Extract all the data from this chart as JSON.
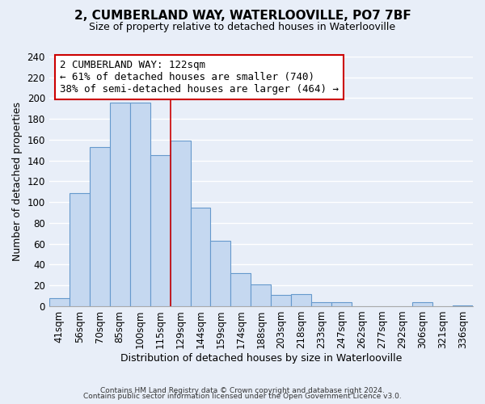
{
  "title": "2, CUMBERLAND WAY, WATERLOOVILLE, PO7 7BF",
  "subtitle": "Size of property relative to detached houses in Waterlooville",
  "xlabel": "Distribution of detached houses by size in Waterlooville",
  "ylabel": "Number of detached properties",
  "bar_labels": [
    "41sqm",
    "56sqm",
    "70sqm",
    "85sqm",
    "100sqm",
    "115sqm",
    "129sqm",
    "144sqm",
    "159sqm",
    "174sqm",
    "188sqm",
    "203sqm",
    "218sqm",
    "233sqm",
    "247sqm",
    "262sqm",
    "277sqm",
    "292sqm",
    "306sqm",
    "321sqm",
    "336sqm"
  ],
  "bar_heights": [
    8,
    109,
    153,
    196,
    196,
    145,
    159,
    95,
    63,
    32,
    21,
    11,
    12,
    4,
    4,
    0,
    0,
    0,
    4,
    0,
    1
  ],
  "bar_color": "#c5d8f0",
  "bar_edge_color": "#6699cc",
  "annotation_title": "2 CUMBERLAND WAY: 122sqm",
  "annotation_line1": "← 61% of detached houses are smaller (740)",
  "annotation_line2": "38% of semi-detached houses are larger (464) →",
  "vline_x_index": 5.5,
  "ylim": [
    0,
    240
  ],
  "yticks": [
    0,
    20,
    40,
    60,
    80,
    100,
    120,
    140,
    160,
    180,
    200,
    220,
    240
  ],
  "footer1": "Contains HM Land Registry data © Crown copyright and database right 2024.",
  "footer2": "Contains public sector information licensed under the Open Government Licence v3.0.",
  "background_color": "#e8eef8",
  "grid_color": "#ffffff",
  "vline_color": "#cc0000",
  "annotation_box_edge": "#cc0000",
  "annotation_box_face": "#ffffff",
  "title_fontsize": 11,
  "subtitle_fontsize": 9,
  "ylabel_fontsize": 9,
  "xlabel_fontsize": 9,
  "tick_fontsize": 8.5,
  "annotation_fontsize": 9
}
